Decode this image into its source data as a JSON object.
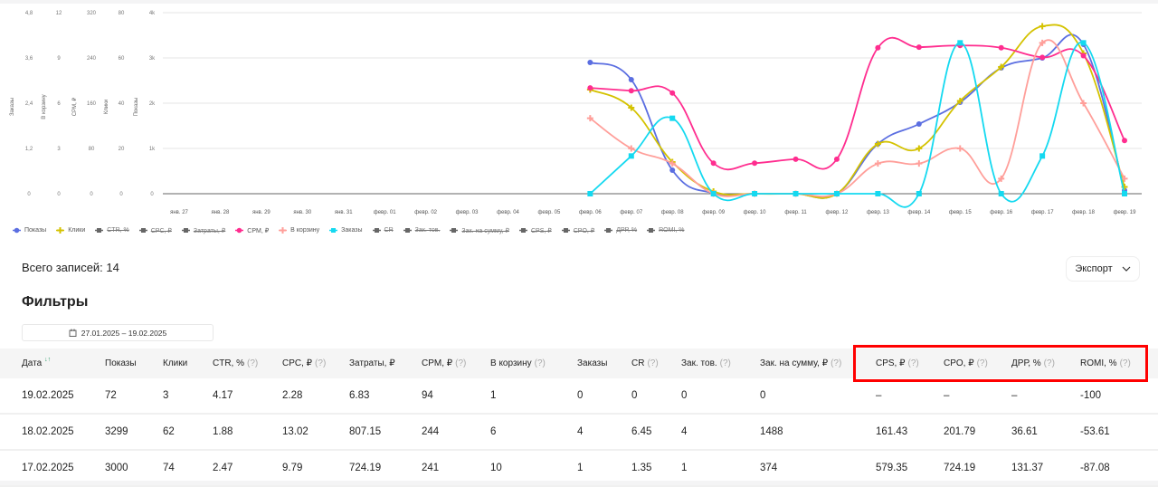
{
  "chart_data": {
    "type": "line",
    "categories": [
      "янв. 27",
      "янв. 28",
      "янв. 29",
      "янв. 30",
      "янв. 31",
      "февр. 01",
      "февр. 02",
      "февр. 03",
      "февр. 04",
      "февр. 05",
      "февр. 06",
      "февр. 07",
      "февр. 08",
      "февр. 09",
      "февр. 10",
      "февр. 11",
      "февр. 12",
      "февр. 13",
      "февр. 14",
      "февр. 15",
      "февр. 16",
      "февр. 17",
      "февр. 18",
      "февр. 19"
    ],
    "axes": [
      {
        "title": "Заказы",
        "ticks": [
          "0",
          "1,2",
          "2,4",
          "3,6",
          "4,8"
        ],
        "max": 4.8
      },
      {
        "title": "В корзину",
        "ticks": [
          "0",
          "3",
          "6",
          "9",
          "12"
        ],
        "max": 12
      },
      {
        "title": "CPM, ₽",
        "ticks": [
          "0",
          "80",
          "160",
          "240",
          "320"
        ],
        "max": 320
      },
      {
        "title": "Клики",
        "ticks": [
          "0",
          "20",
          "40",
          "60",
          "80"
        ],
        "max": 80
      },
      {
        "title": "Показы",
        "ticks": [
          "0",
          "1k",
          "2k",
          "3k",
          "4k"
        ],
        "max": 4000
      }
    ],
    "grid": true,
    "legend_placement": "bottom-left",
    "series": [
      {
        "name": "Показы",
        "color": "#5b6ee1",
        "marker": "circle",
        "axis": 4,
        "visible": true,
        "values": [
          null,
          null,
          null,
          null,
          null,
          null,
          null,
          null,
          null,
          null,
          2900,
          2520,
          520,
          10,
          0,
          0,
          0,
          1100,
          1540,
          2020,
          2780,
          3000,
          3299,
          72
        ]
      },
      {
        "name": "Клики",
        "color": "#d4c200",
        "marker": "plus",
        "axis": 3,
        "visible": true,
        "values": [
          null,
          null,
          null,
          null,
          null,
          null,
          null,
          null,
          null,
          null,
          46,
          38,
          14,
          1,
          0,
          0,
          0,
          22,
          20,
          41,
          56,
          74,
          62,
          3
        ]
      },
      {
        "name": "CTR, %",
        "visible": false
      },
      {
        "name": "CPC, ₽",
        "visible": false
      },
      {
        "name": "Затраты, ₽",
        "visible": false
      },
      {
        "name": "CPM, ₽",
        "color": "#ff2d8f",
        "marker": "circle",
        "axis": 2,
        "visible": true,
        "values": [
          null,
          null,
          null,
          null,
          null,
          null,
          null,
          null,
          null,
          null,
          187,
          182,
          178,
          54,
          54,
          61,
          61,
          258,
          259,
          262,
          258,
          241,
          244,
          94
        ]
      },
      {
        "name": "В корзину",
        "color": "#ff9f9a",
        "marker": "plus",
        "axis": 1,
        "visible": true,
        "values": [
          null,
          null,
          null,
          null,
          null,
          null,
          null,
          null,
          null,
          null,
          5,
          3,
          2,
          0,
          0,
          0,
          0,
          2,
          2,
          3,
          1,
          10,
          6,
          1
        ]
      },
      {
        "name": "Заказы",
        "color": "#14d9f0",
        "marker": "square",
        "axis": 0,
        "visible": true,
        "values": [
          null,
          null,
          null,
          null,
          null,
          null,
          null,
          null,
          null,
          null,
          0,
          1,
          2,
          0,
          0,
          0,
          0,
          0,
          0,
          4,
          0,
          1,
          4,
          0
        ]
      },
      {
        "name": "CR",
        "visible": false
      },
      {
        "name": "Зак. тов.",
        "visible": false
      },
      {
        "name": "Зак. на сумму, ₽",
        "visible": false
      },
      {
        "name": "CPS, ₽",
        "visible": false
      },
      {
        "name": "CPO, ₽",
        "visible": false
      },
      {
        "name": "ДРР, %",
        "visible": false
      },
      {
        "name": "ROMI, %",
        "visible": false
      }
    ]
  },
  "summary": {
    "total": "Всего записей: 14",
    "export": "Экспорт"
  },
  "filters": {
    "title": "Фильтры",
    "date_range": "27.01.2025 – 19.02.2025"
  },
  "table": {
    "columns": [
      {
        "label": "Дата",
        "help": false,
        "sort": true
      },
      {
        "label": "Показы",
        "help": false
      },
      {
        "label": "Клики",
        "help": false
      },
      {
        "label": "CTR, %",
        "help": true
      },
      {
        "label": "CPC, ₽",
        "help": true
      },
      {
        "label": "Затраты, ₽",
        "help": false
      },
      {
        "label": "CPM, ₽",
        "help": true
      },
      {
        "label": "В корзину",
        "help": true
      },
      {
        "label": "Заказы",
        "help": false
      },
      {
        "label": "CR",
        "help": true
      },
      {
        "label": "Зак. тов.",
        "help": true
      },
      {
        "label": "Зак. на сумму, ₽",
        "help": true
      },
      {
        "label": "CPS, ₽",
        "help": true
      },
      {
        "label": "CPO, ₽",
        "help": true
      },
      {
        "label": "ДРР, %",
        "help": true
      },
      {
        "label": "ROMI, %",
        "help": true
      }
    ],
    "help_mark": "(?)",
    "sort_mark": "↓↑",
    "rows": [
      [
        "19.02.2025",
        "72",
        "3",
        "4.17",
        "2.28",
        "6.83",
        "94",
        "1",
        "0",
        "0",
        "0",
        "0",
        "–",
        "–",
        "–",
        "-100"
      ],
      [
        "18.02.2025",
        "3299",
        "62",
        "1.88",
        "13.02",
        "807.15",
        "244",
        "6",
        "4",
        "6.45",
        "4",
        "1488",
        "161.43",
        "201.79",
        "36.61",
        "-53.61"
      ],
      [
        "17.02.2025",
        "3000",
        "74",
        "2.47",
        "9.79",
        "724.19",
        "241",
        "10",
        "1",
        "1.35",
        "1",
        "374",
        "579.35",
        "724.19",
        "131.37",
        "-87.08"
      ]
    ]
  },
  "highlight_color": "#ff0000"
}
